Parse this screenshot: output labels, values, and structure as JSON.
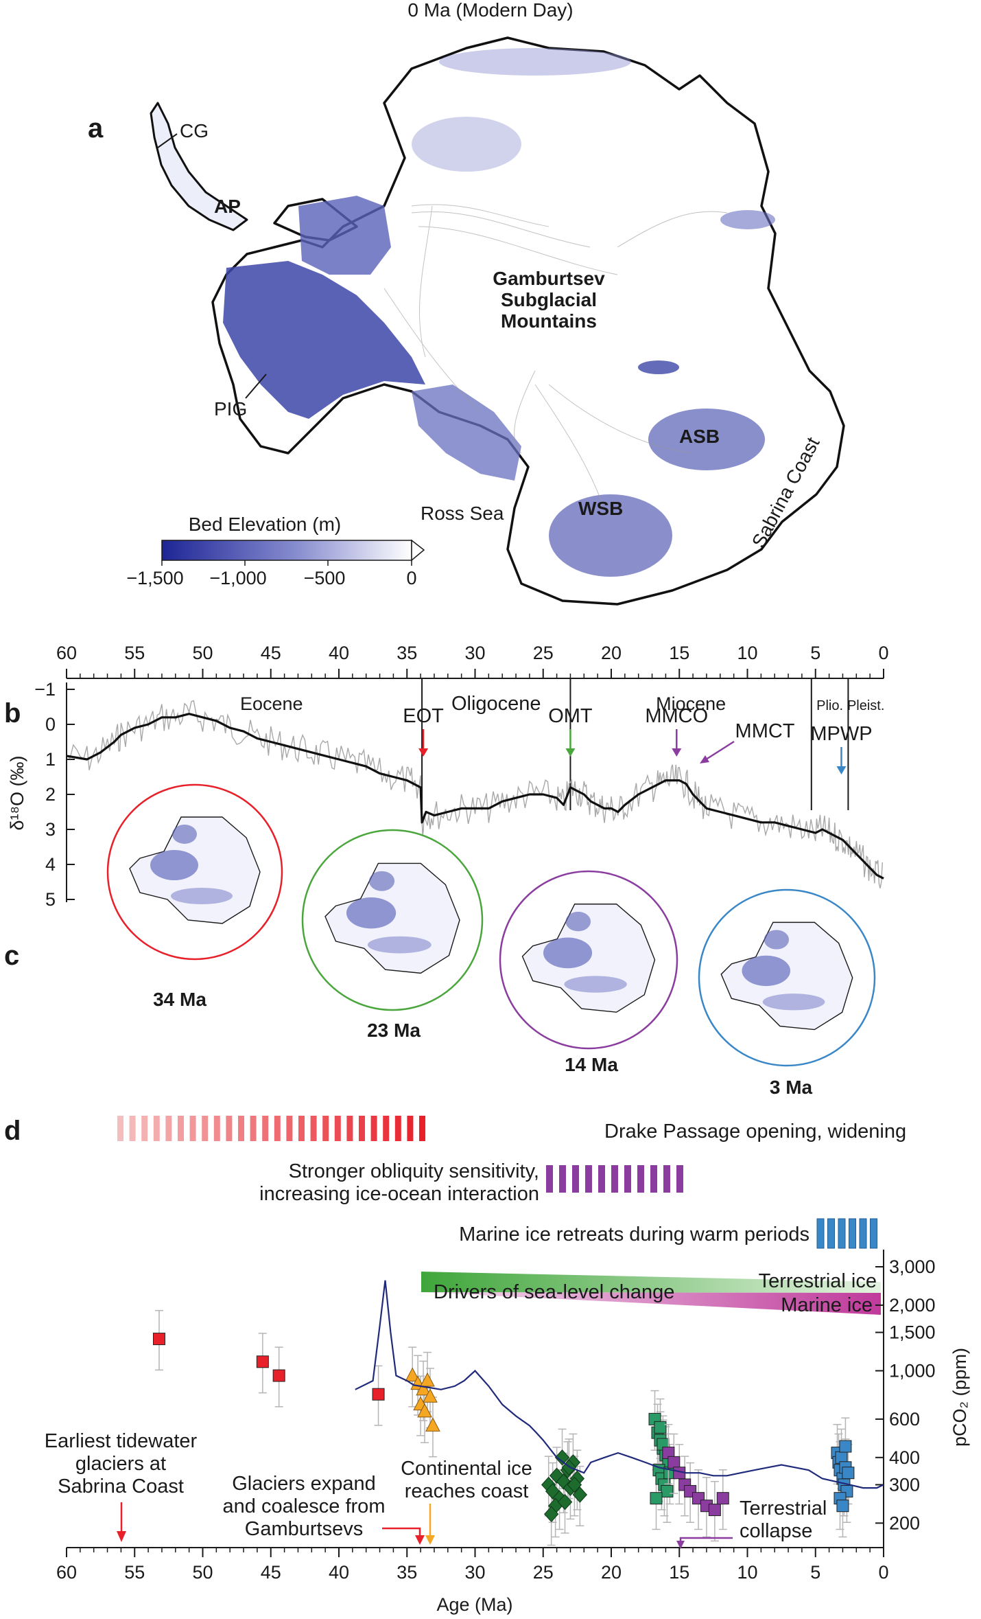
{
  "panel_a": {
    "letter": "a",
    "title": "0 Ma (Modern Day)",
    "labels": {
      "cg": "CG",
      "ap": "AP",
      "mountains": [
        "Gamburtsev",
        "Subglacial",
        "Mountains"
      ],
      "pig": "PIG",
      "asb": "ASB",
      "wsb": "WSB",
      "ross": "Ross Sea",
      "sabrina": "Sabrina Coast"
    },
    "colorbar": {
      "title": "Bed Elevation (m)",
      "ticks": [
        "−1,500",
        "−1,000",
        "−500",
        "0"
      ],
      "color_low": "#1d2596",
      "color_high": "#ffffff"
    }
  },
  "panel_b": {
    "letter": "b"
  },
  "panel_c": {
    "letter": "c",
    "circles": [
      {
        "label": "34 Ma",
        "color": "#e8202a"
      },
      {
        "label": "23 Ma",
        "color": "#4aa63c"
      },
      {
        "label": "14 Ma",
        "color": "#8a3d9f"
      },
      {
        "label": "3 Ma",
        "color": "#3a87c8"
      }
    ]
  },
  "panel_d": {
    "letter": "d",
    "bars": {
      "drake": "Drake Passage opening, widening",
      "obliquity": [
        "Stronger obliquity sensitivity,",
        "increasing ice-ocean interaction"
      ],
      "marine_retreat": "Marine ice retreats during warm periods"
    },
    "wedges": {
      "drivers": "Drivers of sea-level change",
      "terrestrial": "Terrestrial ice",
      "marine": "Marine ice"
    },
    "annotations": {
      "tidewater": [
        "Earliest tidewater",
        "glaciers at",
        "Sabrina Coast"
      ],
      "glaciers": [
        "Glaciers expand",
        "and coalesce from",
        "Gamburtsevs"
      ],
      "continental": [
        "Continental ice",
        "reaches coast"
      ],
      "collapse": [
        "Terrestrial",
        "collapse"
      ]
    }
  },
  "chart_data": [
    {
      "type": "line",
      "panel": "b",
      "xlabel": "",
      "ylabel": "δ¹⁸O (‰)",
      "xlim": [
        60,
        0
      ],
      "ylim": [
        -1,
        5
      ],
      "y_inverted": true,
      "x_ticks": [
        "60",
        "55",
        "50",
        "45",
        "40",
        "35",
        "30",
        "25",
        "20",
        "15",
        "10",
        "5",
        "0"
      ],
      "y_ticks": [
        "−1",
        "0",
        "1",
        "2",
        "3",
        "4",
        "5"
      ],
      "epochs": [
        {
          "name": "Eocene",
          "start": 56,
          "end": 33.9
        },
        {
          "name": "Oligocene",
          "start": 33.9,
          "end": 23
        },
        {
          "name": "Miocene",
          "start": 23,
          "end": 5.3
        },
        {
          "name": "Plio.",
          "start": 5.3,
          "end": 2.6
        },
        {
          "name": "Pleist.",
          "start": 2.6,
          "end": 0
        }
      ],
      "events": [
        {
          "label": "EOT",
          "age": 33.8,
          "color": "#e8202a"
        },
        {
          "label": "OMT",
          "age": 23,
          "color": "#4aa63c"
        },
        {
          "label": "MMCO",
          "age": 15.2,
          "color": "#8a3d9f"
        },
        {
          "label": "MMCT",
          "age": 13.5,
          "color": "#8a3d9f"
        },
        {
          "label": "MPWP",
          "age": 3.1,
          "color": "#3a87c8"
        }
      ],
      "series": [
        {
          "x": [
            60,
            58.5,
            57.5,
            56.5,
            56,
            55,
            54,
            53,
            52,
            51,
            50,
            49,
            48,
            47,
            46,
            45,
            44,
            43,
            42,
            41,
            40,
            39,
            38,
            37,
            36,
            35,
            34.5,
            34,
            33.9,
            33.6,
            33,
            32,
            31,
            30,
            29,
            28,
            27,
            26,
            25,
            24,
            23.5,
            23,
            22.5,
            22,
            21.5,
            21,
            20.5,
            20,
            19.5,
            19,
            18,
            17,
            16.5,
            16,
            15.5,
            15,
            14.5,
            14,
            13.5,
            13,
            12,
            11,
            10,
            9,
            8,
            7,
            6,
            5,
            4.5,
            4,
            3.5,
            3,
            2.5,
            2,
            1.5,
            1,
            0.5,
            0
          ],
          "values": [
            0.9,
            1.0,
            0.8,
            0.5,
            0.3,
            0.1,
            0.0,
            -0.2,
            -0.2,
            -0.3,
            -0.2,
            -0.1,
            0.1,
            0.2,
            0.4,
            0.5,
            0.6,
            0.7,
            0.8,
            0.9,
            1.0,
            1.1,
            1.2,
            1.4,
            1.5,
            1.6,
            1.7,
            1.8,
            2.8,
            2.5,
            2.6,
            2.5,
            2.4,
            2.4,
            2.4,
            2.2,
            2.1,
            2.0,
            2.0,
            2.1,
            2.3,
            1.8,
            1.9,
            2.0,
            2.2,
            2.3,
            2.4,
            2.4,
            2.5,
            2.3,
            2.0,
            1.8,
            1.7,
            1.6,
            1.6,
            1.6,
            1.7,
            2.0,
            2.2,
            2.4,
            2.5,
            2.6,
            2.7,
            2.8,
            2.8,
            2.9,
            3.0,
            3.1,
            3.0,
            3.1,
            3.2,
            3.3,
            3.5,
            3.7,
            3.9,
            4.1,
            4.3,
            4.4
          ]
        }
      ]
    },
    {
      "type": "scatter",
      "panel": "d",
      "xlabel": "Age (Ma)",
      "ylabel": "pCO₂ (ppm)",
      "xlim": [
        60,
        0
      ],
      "ylim": [
        150,
        3000
      ],
      "y_scale": "log",
      "x_ticks": [
        "60",
        "55",
        "50",
        "45",
        "40",
        "35",
        "30",
        "25",
        "20",
        "15",
        "10",
        "5",
        "0"
      ],
      "y_ticks": [
        "200",
        "300",
        "400",
        "600",
        "1,000",
        "1,500",
        "2,000",
        "3,000"
      ],
      "series": [
        {
          "marker": "square",
          "color": "#e8202a",
          "x": [
            53.2,
            45.6,
            44.4,
            37.1
          ],
          "values": [
            1400,
            1100,
            950,
            780
          ]
        },
        {
          "marker": "triangle",
          "color": "#f5a623",
          "x": [
            34.6,
            34.2,
            33.8,
            33.5,
            33.3,
            34.0,
            33.7,
            33.1
          ],
          "values": [
            950,
            870,
            820,
            900,
            760,
            700,
            650,
            560
          ]
        },
        {
          "marker": "diamond",
          "color": "#1e6b2e",
          "x": [
            24.6,
            24.3,
            24.0,
            23.8,
            23.5,
            23.2,
            23.0,
            22.8,
            22.5,
            22.3,
            24.1,
            23.6,
            23.1,
            22.7,
            24.4,
            23.4
          ],
          "values": [
            300,
            280,
            330,
            260,
            310,
            350,
            290,
            380,
            320,
            270,
            240,
            400,
            360,
            300,
            220,
            250
          ]
        },
        {
          "marker": "square",
          "color": "#2a9a66",
          "x": [
            16.8,
            16.6,
            16.4,
            16.2,
            16.0,
            15.8,
            16.5,
            16.3,
            16.1,
            15.9,
            16.7,
            16.2,
            15.7,
            16.4
          ],
          "values": [
            600,
            520,
            480,
            440,
            410,
            380,
            350,
            320,
            300,
            280,
            260,
            460,
            340,
            550
          ]
        },
        {
          "marker": "square",
          "color": "#8a3d9f",
          "x": [
            15.8,
            15.4,
            15.0,
            14.6,
            14.2,
            13.6,
            13.0,
            12.4,
            11.8
          ],
          "values": [
            420,
            380,
            340,
            300,
            280,
            260,
            240,
            230,
            260
          ]
        },
        {
          "marker": "square",
          "color": "#3a87c8",
          "x": [
            3.4,
            3.3,
            3.2,
            3.1,
            3.0,
            2.9,
            2.8,
            2.7,
            2.6,
            3.2,
            3.0,
            2.8
          ],
          "values": [
            420,
            380,
            350,
            400,
            320,
            300,
            360,
            280,
            340,
            260,
            240,
            450
          ]
        },
        {
          "marker": "line",
          "color": "#1f2a7a",
          "name": "",
          "x": [
            38.8,
            37.5,
            37.0,
            36.6,
            36.2,
            35.8,
            35.0,
            34.5,
            33.5,
            32.5,
            31.5,
            30.8,
            30.0,
            29.0,
            28.0,
            27.0,
            26.0,
            25.5,
            25.0,
            24.0,
            23.0,
            22.0,
            21.5,
            20.5,
            19.5,
            18.5,
            17.5,
            16.5,
            15.5,
            14.5,
            13.5,
            12.5,
            11.5,
            10.5,
            9.5,
            8.5,
            7.5,
            6.5,
            5.5,
            4.5,
            3.5,
            2.5,
            1.5,
            0.5,
            0
          ],
          "values": [
            820,
            900,
            1600,
            2600,
            1500,
            950,
            900,
            860,
            840,
            820,
            850,
            900,
            1000,
            850,
            700,
            620,
            560,
            520,
            480,
            400,
            360,
            340,
            380,
            400,
            420,
            400,
            380,
            360,
            350,
            340,
            340,
            330,
            330,
            340,
            350,
            360,
            370,
            360,
            350,
            320,
            310,
            300,
            290,
            290,
            300
          ]
        }
      ]
    }
  ]
}
